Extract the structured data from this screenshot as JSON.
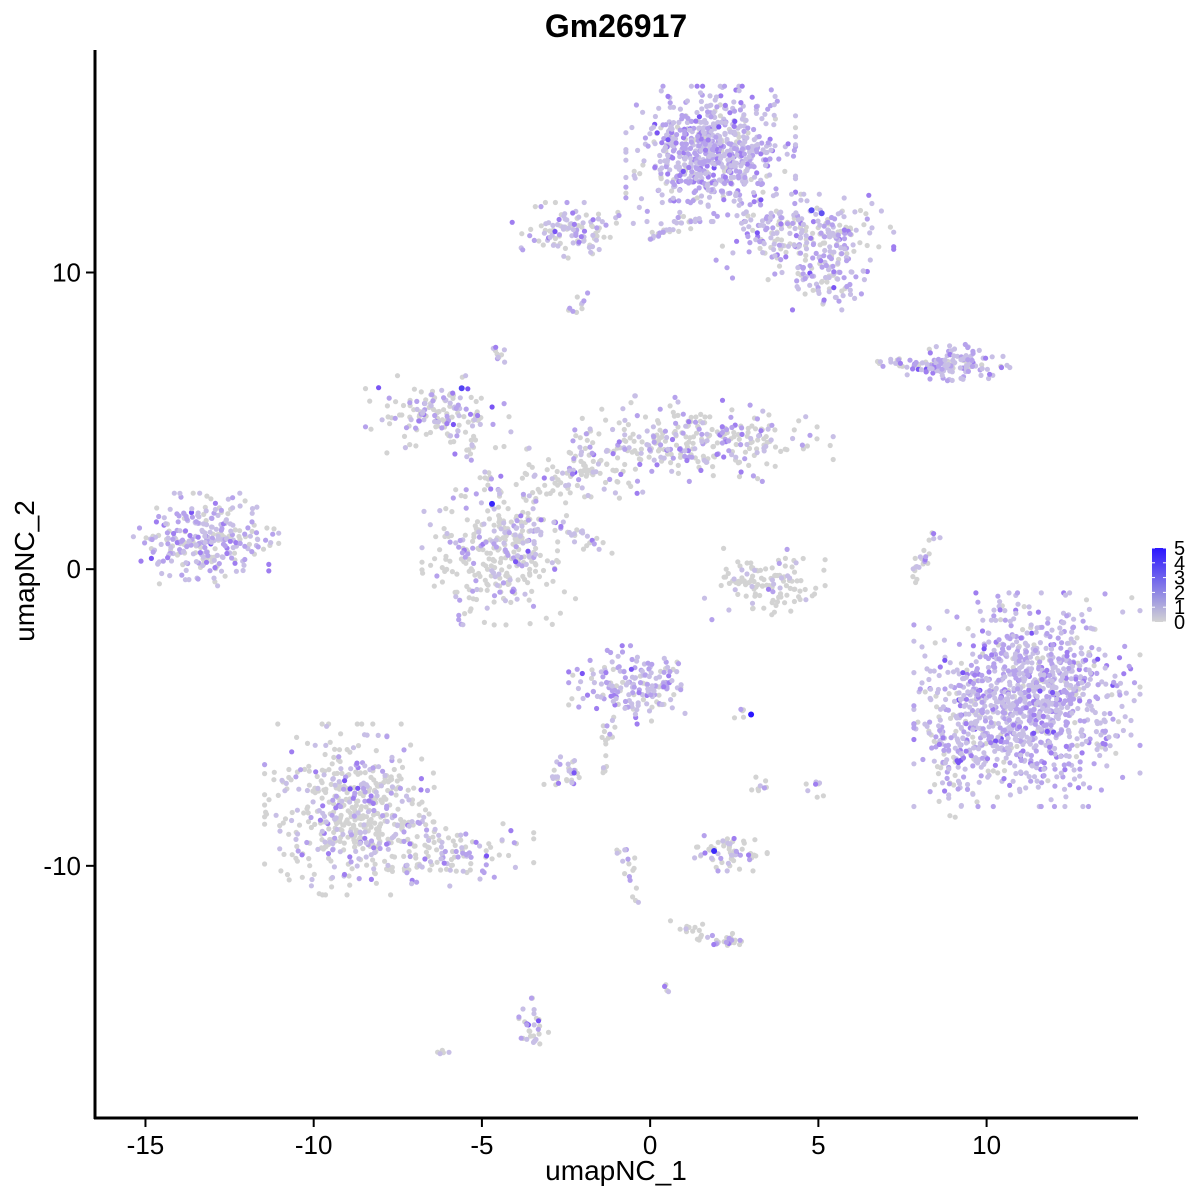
{
  "chart_data": {
    "type": "scatter",
    "title": "Gm26917",
    "xlabel": "umapNC_1",
    "ylabel": "umapNC_2",
    "xlim": [
      -16.5,
      14.5
    ],
    "ylim": [
      -18.5,
      17.5
    ],
    "xticks": [
      -15,
      -10,
      -5,
      0,
      5,
      10
    ],
    "yticks": [
      -10,
      0,
      10
    ],
    "grid": false,
    "legend": {
      "placement": "right",
      "type": "colorbar",
      "labels": [
        "0",
        "1",
        "2",
        "3",
        "4",
        "5"
      ],
      "range": [
        0,
        5
      ],
      "low_color": "#d3d3d3",
      "high_color": "#2b16ff"
    },
    "expression_colors": [
      "#d3d3d3",
      "#c8bfe6",
      "#b6a2ec",
      "#9f7ef0",
      "#7a55f4",
      "#2b16ff"
    ],
    "clusters": [
      {
        "name": "c1",
        "cx": 1.8,
        "cy": 14.0,
        "sx": 1.05,
        "sy": 0.95,
        "n": 700,
        "expr": 0.9
      },
      {
        "name": "c2",
        "cx": 4.6,
        "cy": 11.2,
        "sx": 1.1,
        "sy": 0.6,
        "n": 260,
        "expr": 0.7
      },
      {
        "name": "c3",
        "cx": 5.3,
        "cy": 9.7,
        "sx": 0.55,
        "sy": 0.4,
        "n": 70,
        "expr": 0.7
      },
      {
        "name": "c4",
        "cx": -2.3,
        "cy": 11.4,
        "sx": 0.75,
        "sy": 0.4,
        "n": 110,
        "expr": 0.6
      },
      {
        "name": "c5",
        "cx": 9.2,
        "cy": 6.9,
        "sx": 0.65,
        "sy": 0.28,
        "n": 110,
        "expr": 0.9
      },
      {
        "name": "c6",
        "cx": -13.2,
        "cy": 1.0,
        "sx": 0.9,
        "sy": 0.65,
        "n": 290,
        "expr": 0.7
      },
      {
        "name": "c7",
        "cx": -4.5,
        "cy": 0.4,
        "sx": 0.95,
        "sy": 0.95,
        "n": 300,
        "expr": 0.35
      },
      {
        "name": "c8",
        "cx": -6.3,
        "cy": 5.2,
        "sx": 0.9,
        "sy": 0.55,
        "n": 150,
        "expr": 0.45
      },
      {
        "name": "c9",
        "cx": 1.6,
        "cy": 4.4,
        "sx": 1.6,
        "sy": 0.6,
        "n": 280,
        "expr": 0.45
      },
      {
        "name": "c10",
        "cx": -1.8,
        "cy": 3.4,
        "sx": 1.1,
        "sy": 0.5,
        "n": 100,
        "expr": 0.35
      },
      {
        "name": "c11",
        "cx": 3.4,
        "cy": -0.5,
        "sx": 0.75,
        "sy": 0.5,
        "n": 120,
        "expr": 0.25
      },
      {
        "name": "c12",
        "cx": 11.2,
        "cy": -4.4,
        "sx": 1.4,
        "sy": 1.5,
        "n": 1100,
        "expr": 0.9
      },
      {
        "name": "c13",
        "cx": 9.0,
        "cy": -6.2,
        "sx": 0.5,
        "sy": 0.9,
        "n": 90,
        "expr": 0.7
      },
      {
        "name": "c14",
        "cx": -0.5,
        "cy": -3.9,
        "sx": 0.8,
        "sy": 0.55,
        "n": 180,
        "expr": 0.75
      },
      {
        "name": "c15",
        "cx": -8.7,
        "cy": -8.1,
        "sx": 1.15,
        "sy": 1.2,
        "n": 520,
        "expr": 0.35
      },
      {
        "name": "c16",
        "cx": -6.1,
        "cy": -9.6,
        "sx": 1.1,
        "sy": 0.45,
        "n": 120,
        "expr": 0.45
      },
      {
        "name": "c17",
        "cx": -2.5,
        "cy": -6.9,
        "sx": 0.35,
        "sy": 0.25,
        "n": 30,
        "expr": 0.6
      },
      {
        "name": "c18",
        "cx": 2.4,
        "cy": -9.5,
        "sx": 0.45,
        "sy": 0.28,
        "n": 60,
        "expr": 0.4
      },
      {
        "name": "c19",
        "cx": -3.5,
        "cy": -15.3,
        "sx": 0.22,
        "sy": 0.35,
        "n": 30,
        "expr": 0.55
      },
      {
        "name": "c20",
        "cx": 2.2,
        "cy": -12.6,
        "sx": 0.35,
        "sy": 0.18,
        "n": 25,
        "expr": 0.5
      }
    ],
    "strands": [
      {
        "name": "s1",
        "from": [
          -0.2,
          11.1
        ],
        "to": [
          1.2,
          11.8
        ],
        "n": 25,
        "expr": 0.4
      },
      {
        "name": "s2",
        "from": [
          8.5,
          1.2
        ],
        "to": [
          7.7,
          -0.4
        ],
        "n": 25,
        "expr": 0.4
      },
      {
        "name": "s3",
        "from": [
          6.6,
          7.1
        ],
        "to": [
          8.4,
          6.8
        ],
        "n": 30,
        "expr": 0.6
      },
      {
        "name": "s4",
        "from": [
          -4.2,
          2.2
        ],
        "to": [
          -6.1,
          4.8
        ],
        "n": 25,
        "expr": 0.4
      },
      {
        "name": "s5",
        "from": [
          -4.0,
          2.0
        ],
        "to": [
          -1.8,
          3.5
        ],
        "n": 25,
        "expr": 0.4
      },
      {
        "name": "s6",
        "from": [
          -4.2,
          1.8
        ],
        "to": [
          -3.4,
          0.3
        ],
        "n": 20,
        "expr": 0.3
      },
      {
        "name": "s7",
        "from": [
          -2.8,
          1.5
        ],
        "to": [
          -1.3,
          0.6
        ],
        "n": 25,
        "expr": 0.6
      },
      {
        "name": "s8",
        "from": [
          -1.5,
          -6.9
        ],
        "to": [
          -1.0,
          -4.6
        ],
        "n": 18,
        "expr": 0.4
      },
      {
        "name": "s9",
        "from": [
          -0.9,
          -9.2
        ],
        "to": [
          -0.3,
          -11.3
        ],
        "n": 18,
        "expr": 0.4
      },
      {
        "name": "s10",
        "from": [
          0.3,
          -11.8
        ],
        "to": [
          1.7,
          -12.3
        ],
        "n": 12,
        "expr": 0.4
      },
      {
        "name": "s11",
        "from": [
          -1.8,
          9.2
        ],
        "to": [
          -2.5,
          8.6
        ],
        "n": 10,
        "expr": 0.4
      },
      {
        "name": "s12",
        "from": [
          -4.8,
          7.6
        ],
        "to": [
          -4.3,
          7.1
        ],
        "n": 10,
        "expr": 0.4
      },
      {
        "name": "s13",
        "from": [
          3.2,
          -7.2
        ],
        "to": [
          3.4,
          -8.0
        ],
        "n": 8,
        "expr": 0.4
      },
      {
        "name": "s14",
        "from": [
          4.8,
          -7.0
        ],
        "to": [
          5.2,
          -7.7
        ],
        "n": 8,
        "expr": 0.5
      },
      {
        "name": "s15",
        "from": [
          -6.3,
          -16.3
        ],
        "to": [
          -6.0,
          -16.1
        ],
        "n": 5,
        "expr": 0.6
      },
      {
        "name": "s16",
        "from": [
          2.6,
          -4.9
        ],
        "to": [
          3.1,
          -4.9
        ],
        "n": 5,
        "expr": 0.6
      },
      {
        "name": "s17",
        "from": [
          0.5,
          -14.0
        ],
        "to": [
          0.6,
          -14.2
        ],
        "n": 4,
        "expr": 0.4
      }
    ],
    "highlights": [
      {
        "x": -4.7,
        "y": 2.2,
        "value": 4.6
      },
      {
        "x": 3.0,
        "y": -4.9,
        "value": 5.0
      },
      {
        "x": 1.9,
        "y": -9.5,
        "value": 4.5
      },
      {
        "x": -5.6,
        "y": 6.1,
        "value": 3.8
      },
      {
        "x": 4.8,
        "y": 12.1,
        "value": 3.6
      },
      {
        "x": 5.1,
        "y": 12.0,
        "value": 3.4
      }
    ]
  }
}
